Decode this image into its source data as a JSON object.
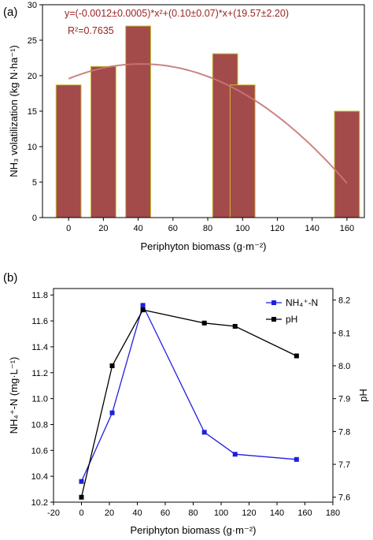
{
  "chart_data": [
    {
      "type": "bar",
      "panel_label": "(a)",
      "x": [
        0,
        20,
        40,
        90,
        100,
        160
      ],
      "values": [
        18.7,
        21.3,
        27.0,
        23.1,
        18.7,
        15.0
      ],
      "xlim": [
        -15,
        170
      ],
      "ylim": [
        0,
        30
      ],
      "xticks": [
        0,
        20,
        40,
        60,
        80,
        100,
        120,
        140,
        160
      ],
      "yticks": [
        0,
        5,
        10,
        15,
        20,
        25,
        30
      ],
      "xlabel": "Periphyton biomass (g·m⁻²)",
      "ylabel": "NH₃ volatilization (kg N·ha⁻¹)",
      "equation": "y=(-0.0012±0.0005)*x²+(0.10±0.07)*x+(19.57±2.20)",
      "r_squared": "R²=0.7635",
      "fit": {
        "a": -0.0012,
        "b": 0.1,
        "c": 19.57,
        "x_range": [
          0,
          160
        ]
      },
      "colors": {
        "bar": "#a34a4a",
        "bar_edge": "#c9c236",
        "fit": "#c77777",
        "text": "#9a2323"
      }
    },
    {
      "type": "line",
      "panel_label": "(b)",
      "xlim": [
        -20,
        180
      ],
      "xticks": [
        -20,
        0,
        20,
        40,
        60,
        80,
        100,
        120,
        140,
        160,
        180
      ],
      "xlabel": "Periphyton biomass (g·m⁻²)",
      "ylabel": "NH₄⁺-N (mg·L⁻¹)",
      "ylabel_right": "pH",
      "ylim": [
        10.2,
        11.85
      ],
      "yticks": [
        10.2,
        10.4,
        10.6,
        10.8,
        11.0,
        11.2,
        11.4,
        11.6,
        11.8
      ],
      "ylim_right": [
        7.585,
        8.235
      ],
      "yticks_right": [
        7.6,
        7.7,
        7.8,
        7.9,
        8.0,
        8.1,
        8.2
      ],
      "legend": "top-right",
      "series": [
        {
          "name": "NH₄⁺-N",
          "axis": "left",
          "color": "#1f1fe0",
          "x": [
            0,
            22,
            44,
            88,
            110,
            154
          ],
          "values": [
            10.36,
            10.89,
            11.72,
            10.74,
            10.57,
            10.53
          ]
        },
        {
          "name": "pH",
          "axis": "right",
          "color": "#000000",
          "x": [
            0,
            22,
            44,
            88,
            110,
            154
          ],
          "values": [
            7.6,
            8.0,
            8.17,
            8.13,
            8.12,
            8.03
          ]
        }
      ]
    }
  ]
}
